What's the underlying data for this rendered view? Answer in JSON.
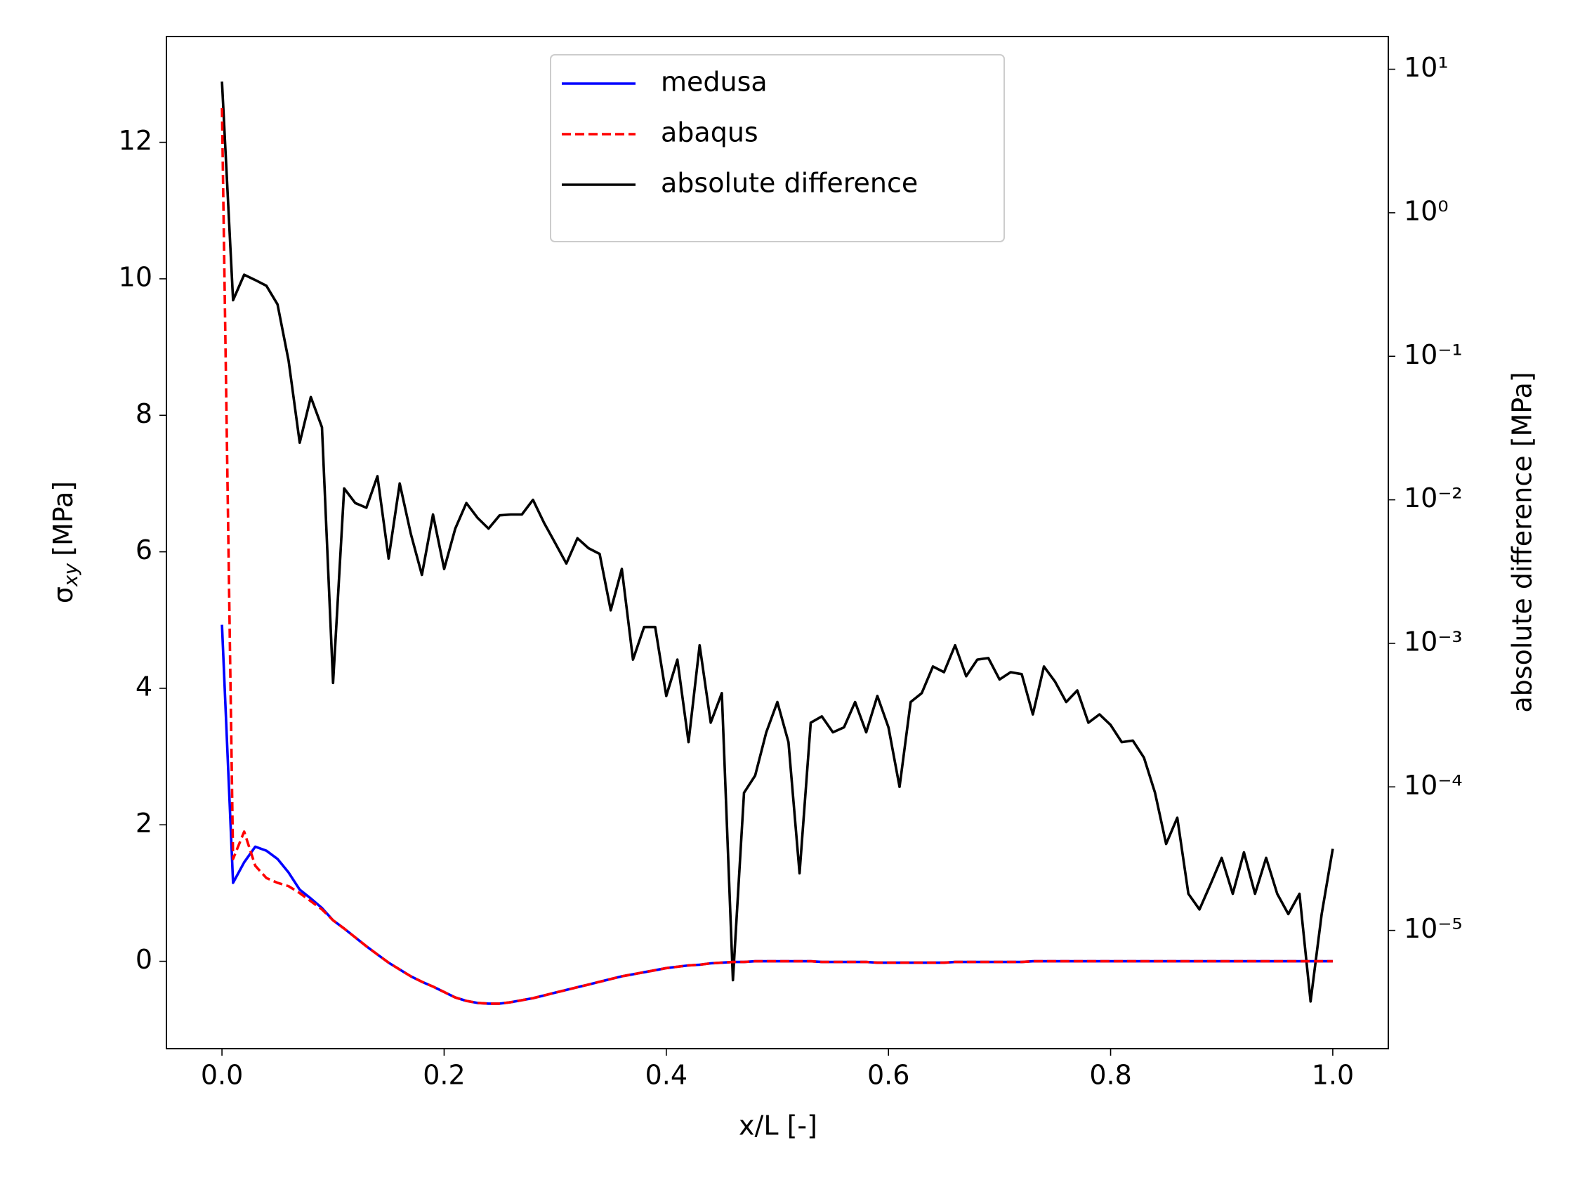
{
  "chart_data": {
    "type": "line",
    "x_label": "x/L [-]",
    "y_label": {
      "symbol": "σ",
      "subscript": "xy",
      "unit": "[MPa]"
    },
    "y2_label": "absolute difference [MPa]",
    "x": [
      0,
      0.01,
      0.02,
      0.03,
      0.04,
      0.05,
      0.06,
      0.07,
      0.08,
      0.09,
      0.1,
      0.11,
      0.12,
      0.13,
      0.14,
      0.15,
      0.16,
      0.17,
      0.18,
      0.19,
      0.2,
      0.21,
      0.22,
      0.23,
      0.24,
      0.25,
      0.26,
      0.27,
      0.28,
      0.29,
      0.3,
      0.31,
      0.32,
      0.33,
      0.34,
      0.35,
      0.36,
      0.37,
      0.38,
      0.39,
      0.4,
      0.41,
      0.42,
      0.43,
      0.44,
      0.45,
      0.46,
      0.47,
      0.48,
      0.49,
      0.5,
      0.51,
      0.52,
      0.53,
      0.54,
      0.55,
      0.56,
      0.57,
      0.58,
      0.59,
      0.6,
      0.61,
      0.62,
      0.63,
      0.64,
      0.65,
      0.66,
      0.67,
      0.68,
      0.69,
      0.7,
      0.71,
      0.72,
      0.73,
      0.74,
      0.75,
      0.76,
      0.77,
      0.78,
      0.79,
      0.8,
      0.81,
      0.82,
      0.83,
      0.84,
      0.85,
      0.86,
      0.87,
      0.88,
      0.89,
      0.9,
      0.91,
      0.92,
      0.93,
      0.94,
      0.95,
      0.96,
      0.97,
      0.98,
      0.99,
      1.0
    ],
    "series": [
      {
        "name": "medusa",
        "color": "#0000ff",
        "linestyle": "solid",
        "values": [
          4.93,
          1.15,
          1.45,
          1.68,
          1.62,
          1.5,
          1.3,
          1.05,
          0.92,
          0.78,
          0.6,
          0.48,
          0.35,
          0.22,
          0.1,
          -0.02,
          -0.12,
          -0.22,
          -0.3,
          -0.37,
          -0.45,
          -0.53,
          -0.58,
          -0.61,
          -0.62,
          -0.62,
          -0.6,
          -0.57,
          -0.54,
          -0.5,
          -0.46,
          -0.42,
          -0.38,
          -0.34,
          -0.3,
          -0.26,
          -0.22,
          -0.19,
          -0.16,
          -0.13,
          -0.1,
          -0.08,
          -0.06,
          -0.05,
          -0.03,
          -0.02,
          -0.01,
          -0.01,
          0,
          0,
          0,
          0,
          0,
          0,
          -0.01,
          -0.01,
          -0.01,
          -0.01,
          -0.01,
          -0.02,
          -0.02,
          -0.02,
          -0.02,
          -0.02,
          -0.02,
          -0.02,
          -0.01,
          -0.01,
          -0.01,
          -0.01,
          -0.01,
          -0.01,
          -0.01,
          0,
          0,
          0,
          0,
          0,
          0,
          0,
          0,
          0,
          0,
          0,
          0,
          0,
          0,
          0,
          0,
          0,
          0,
          0,
          0,
          0,
          0,
          0,
          0,
          0,
          0,
          0,
          0
        ]
      },
      {
        "name": "abaqus",
        "color": "#ff0000",
        "linestyle": "dashed",
        "values": [
          12.5,
          1.5,
          1.9,
          1.4,
          1.22,
          1.15,
          1.1,
          1.0,
          0.88,
          0.76,
          0.6,
          0.48,
          0.35,
          0.22,
          0.1,
          -0.02,
          -0.12,
          -0.22,
          -0.3,
          -0.37,
          -0.45,
          -0.53,
          -0.58,
          -0.61,
          -0.62,
          -0.62,
          -0.6,
          -0.57,
          -0.54,
          -0.5,
          -0.46,
          -0.42,
          -0.38,
          -0.34,
          -0.3,
          -0.26,
          -0.22,
          -0.19,
          -0.16,
          -0.13,
          -0.1,
          -0.08,
          -0.06,
          -0.05,
          -0.03,
          -0.02,
          -0.01,
          -0.01,
          0,
          0,
          0,
          0,
          0,
          0,
          -0.01,
          -0.01,
          -0.01,
          -0.01,
          -0.01,
          -0.02,
          -0.02,
          -0.02,
          -0.02,
          -0.02,
          -0.02,
          -0.02,
          -0.01,
          -0.01,
          -0.01,
          -0.01,
          -0.01,
          -0.01,
          -0.01,
          0,
          0,
          0,
          0,
          0,
          0,
          0,
          0,
          0,
          0,
          0,
          0,
          0,
          0,
          0,
          0,
          0,
          0,
          0,
          0,
          0,
          0,
          0,
          0,
          0,
          0,
          0,
          0
        ]
      },
      {
        "name": "absolute difference",
        "color": "#000000",
        "linestyle": "solid",
        "axis": "y2",
        "values": [
          8.2,
          0.246,
          0.37,
          0.34,
          0.31,
          0.23,
          0.093,
          0.025,
          0.052,
          0.032,
          0.00053,
          0.012,
          0.0095,
          0.0088,
          0.0146,
          0.0039,
          0.013,
          0.0058,
          0.003,
          0.0079,
          0.0033,
          0.0063,
          0.0095,
          0.0075,
          0.0063,
          0.0078,
          0.0079,
          0.0079,
          0.01,
          0.0069,
          0.005,
          0.0036,
          0.0054,
          0.0046,
          0.0042,
          0.0017,
          0.0033,
          0.00077,
          0.0013,
          0.0013,
          0.00043,
          0.00077,
          0.000205,
          0.00097,
          0.00028,
          0.00045,
          4.5e-06,
          9.1e-05,
          0.00012,
          0.00024,
          0.00039,
          0.000205,
          2.5e-05,
          0.00028,
          0.00031,
          0.00024,
          0.00026,
          0.00039,
          0.00024,
          0.00043,
          0.00026,
          0.0001,
          0.00039,
          0.00045,
          0.00069,
          0.00063,
          0.00097,
          0.00059,
          0.00077,
          0.00079,
          0.00056,
          0.00063,
          0.00061,
          0.00032,
          0.00069,
          0.00054,
          0.00039,
          0.00047,
          0.00028,
          0.00032,
          0.00027,
          0.000205,
          0.00021,
          0.00016,
          9.1e-05,
          4e-05,
          6.1e-05,
          1.8e-05,
          1.4e-05,
          2.1e-05,
          3.2e-05,
          1.8e-05,
          3.5e-05,
          1.8e-05,
          3.2e-05,
          1.8e-05,
          1.3e-05,
          1.8e-05,
          3.2e-06,
          1.3e-05,
          3.7e-05
        ]
      }
    ],
    "xlim": [
      -0.05,
      1.05
    ],
    "xticks": [
      {
        "value": 0,
        "label": "0.0"
      },
      {
        "value": 0.2,
        "label": "0.2"
      },
      {
        "value": 0.4,
        "label": "0.4"
      },
      {
        "value": 0.6,
        "label": "0.6"
      },
      {
        "value": 0.8,
        "label": "0.8"
      },
      {
        "value": 1,
        "label": "1.0"
      }
    ],
    "ylim": [
      -1.28,
      13.55
    ],
    "yticks": [
      0,
      2,
      4,
      6,
      8,
      10,
      12
    ],
    "y2lim": [
      1.5e-06,
      16.9
    ],
    "y2scale": "log",
    "y2ticks": [
      {
        "value": 1e-05,
        "label": "10⁻⁵"
      },
      {
        "value": 0.0001,
        "label": "10⁻⁴"
      },
      {
        "value": 0.001,
        "label": "10⁻³"
      },
      {
        "value": 0.01,
        "label": "10⁻²"
      },
      {
        "value": 0.1,
        "label": "10⁻¹"
      },
      {
        "value": 1,
        "label": "10⁰"
      },
      {
        "value": 10,
        "label": "10¹"
      }
    ],
    "legend": "upper center",
    "grid": false
  }
}
